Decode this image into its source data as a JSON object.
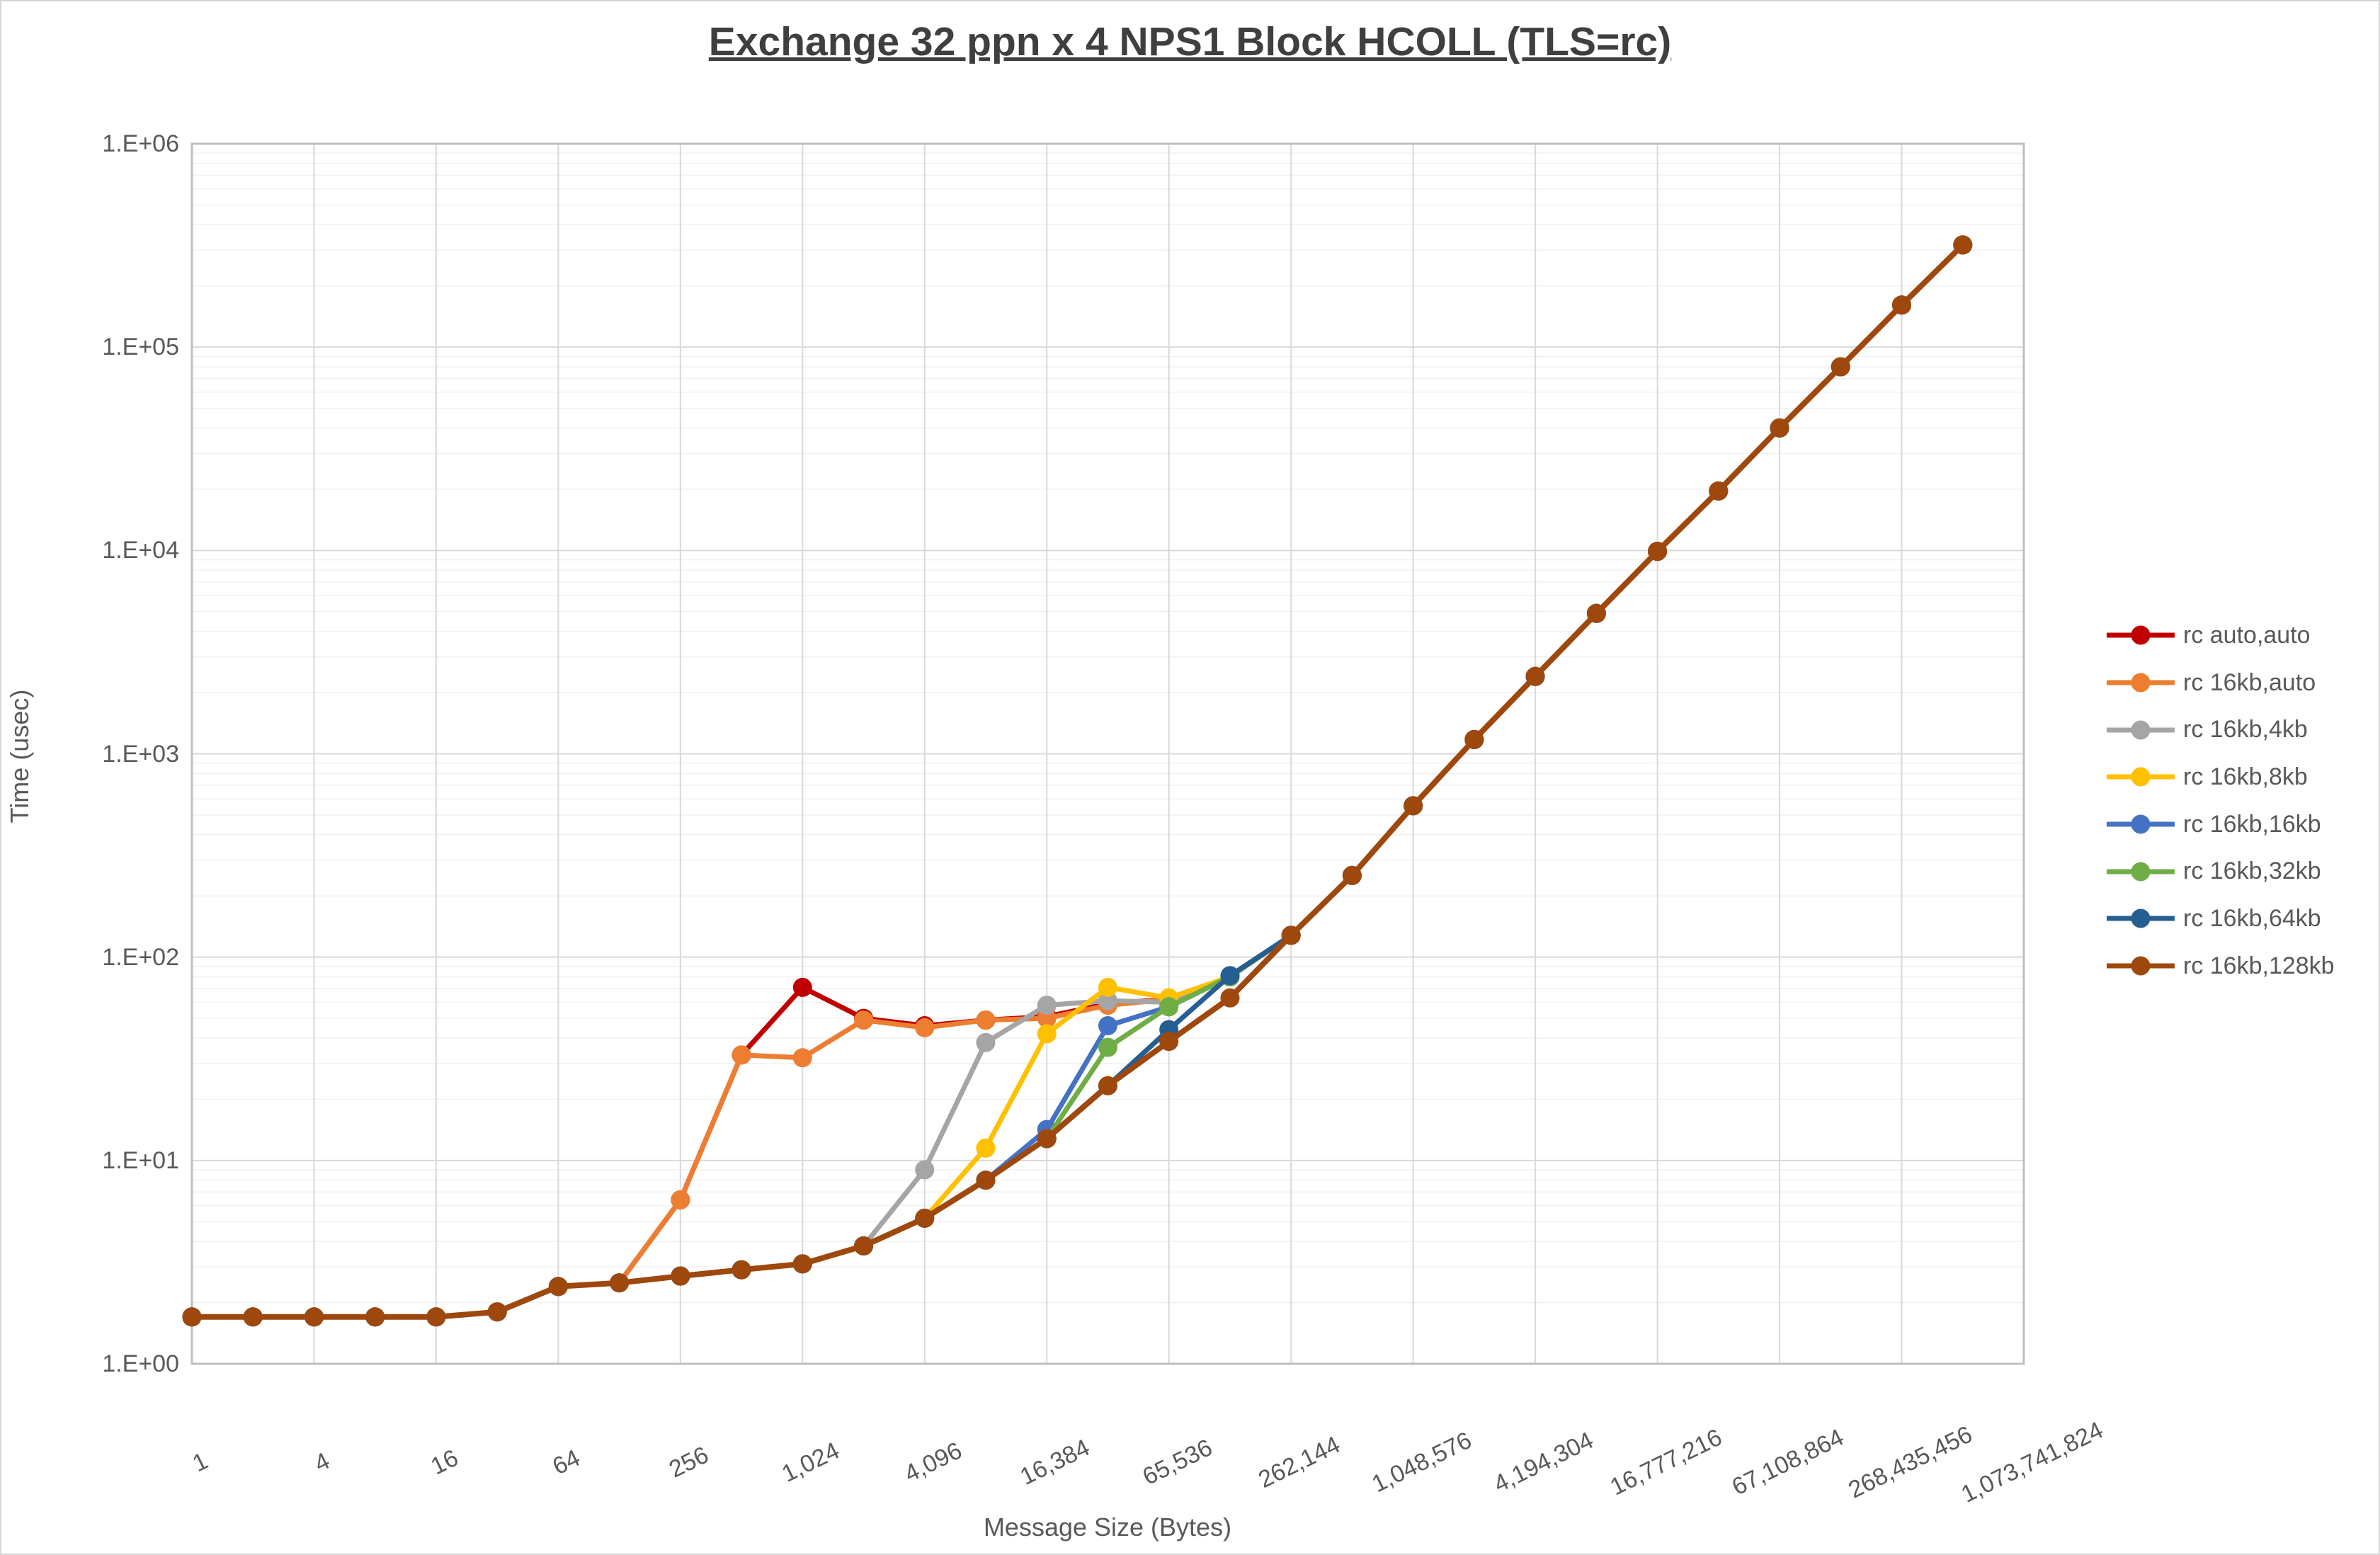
{
  "title": "Exchange 32 ppn x 4 NPS1 Block HCOLL (TLS=rc)",
  "chart_data": {
    "type": "line",
    "title": "Exchange 32 ppn x 4 NPS1 Block HCOLL (TLS=rc)",
    "xlabel": "Message Size (Bytes)",
    "ylabel": "Time (usec)",
    "x_scale": "log2",
    "y_scale": "log10",
    "ylim": [
      1,
      1000000
    ],
    "grid": "major-and-minor-horizontal, major-vertical",
    "legend_position": "right",
    "y_tick_labels": [
      "1.E+00",
      "1.E+01",
      "1.E+02",
      "1.E+03",
      "1.E+04",
      "1.E+05",
      "1.E+06"
    ],
    "x_tick_labels": [
      "1",
      "4",
      "16",
      "64",
      "256",
      "1,024",
      "4,096",
      "16,384",
      "65,536",
      "262,144",
      "1,048,576",
      "4,194,304",
      "16,777,216",
      "67,108,864",
      "268,435,456",
      "1,073,741,824"
    ],
    "x": [
      1,
      2,
      4,
      8,
      16,
      32,
      64,
      128,
      256,
      512,
      1024,
      2048,
      4096,
      8192,
      16384,
      32768,
      65536,
      131072,
      262144,
      524288,
      1048576,
      2097152,
      4194304,
      8388608,
      16777216,
      33554432,
      67108864,
      134217728,
      268435456,
      536870912
    ],
    "series": [
      {
        "name": "rc auto,auto",
        "color": "#C00000",
        "values": [
          1.7,
          1.7,
          1.7,
          1.7,
          1.7,
          1.8,
          2.4,
          2.5,
          6.4,
          33,
          71,
          50,
          46,
          49,
          51,
          59,
          62,
          80,
          128,
          252,
          555,
          1175,
          2400,
          4900,
          9900,
          19600,
          40000,
          80000,
          161000,
          318000
        ]
      },
      {
        "name": "rc 16kb,auto",
        "color": "#ED7D31",
        "values": [
          1.7,
          1.7,
          1.7,
          1.7,
          1.7,
          1.8,
          2.4,
          2.5,
          6.4,
          33,
          32,
          49,
          45,
          49,
          50,
          58,
          62,
          80,
          128,
          252,
          555,
          1175,
          2400,
          4900,
          9900,
          19600,
          40000,
          80000,
          161000,
          318000
        ]
      },
      {
        "name": "rc 16kb,4kb",
        "color": "#A5A5A5",
        "values": [
          1.7,
          1.7,
          1.7,
          1.7,
          1.7,
          1.8,
          2.4,
          2.5,
          2.7,
          2.9,
          3.1,
          3.8,
          9.0,
          38,
          58,
          61,
          60,
          80,
          128,
          252,
          555,
          1175,
          2400,
          4900,
          9900,
          19600,
          40000,
          80000,
          161000,
          318000
        ]
      },
      {
        "name": "rc 16kb,8kb",
        "color": "#FFC000",
        "values": [
          1.7,
          1.7,
          1.7,
          1.7,
          1.7,
          1.8,
          2.4,
          2.5,
          2.7,
          2.9,
          3.1,
          3.8,
          5.2,
          11.5,
          42,
          71,
          63,
          80,
          128,
          252,
          555,
          1175,
          2400,
          4900,
          9900,
          19600,
          40000,
          80000,
          161000,
          318000
        ]
      },
      {
        "name": "rc 16kb,16kb",
        "color": "#4472C4",
        "values": [
          1.7,
          1.7,
          1.7,
          1.7,
          1.7,
          1.8,
          2.4,
          2.5,
          2.7,
          2.9,
          3.1,
          3.8,
          5.2,
          8.0,
          14.2,
          46,
          57,
          80,
          128,
          252,
          555,
          1175,
          2400,
          4900,
          9900,
          19600,
          40000,
          80000,
          161000,
          318000
        ]
      },
      {
        "name": "rc 16kb,32kb",
        "color": "#70AD47",
        "values": [
          1.7,
          1.7,
          1.7,
          1.7,
          1.7,
          1.8,
          2.4,
          2.5,
          2.7,
          2.9,
          3.1,
          3.8,
          5.2,
          8.0,
          12.8,
          36,
          57,
          80,
          128,
          252,
          555,
          1175,
          2400,
          4900,
          9900,
          19600,
          40000,
          80000,
          161000,
          318000
        ]
      },
      {
        "name": "rc 16kb,64kb",
        "color": "#255E91",
        "values": [
          1.7,
          1.7,
          1.7,
          1.7,
          1.7,
          1.8,
          2.4,
          2.5,
          2.7,
          2.9,
          3.1,
          3.8,
          5.2,
          8.0,
          12.8,
          23.3,
          44,
          81,
          128,
          252,
          555,
          1175,
          2400,
          4900,
          9900,
          19600,
          40000,
          80000,
          161000,
          318000
        ]
      },
      {
        "name": "rc 16kb,128kb",
        "color": "#9E480E",
        "values": [
          1.7,
          1.7,
          1.7,
          1.7,
          1.7,
          1.8,
          2.4,
          2.5,
          2.7,
          2.9,
          3.1,
          3.8,
          5.2,
          8.0,
          12.8,
          23.3,
          38.5,
          63,
          128,
          252,
          555,
          1175,
          2400,
          4900,
          9900,
          19600,
          40000,
          80000,
          161000,
          318000
        ]
      }
    ]
  },
  "style": {
    "major_grid_color": "#D9D9D9",
    "minor_grid_color": "#F0F0F0",
    "frame_color": "#BFBFBF",
    "tick_label_color": "#595959",
    "title_color": "#3F3F3F"
  }
}
